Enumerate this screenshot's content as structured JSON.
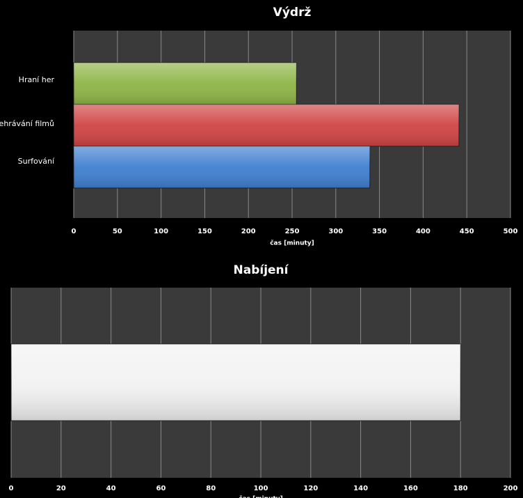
{
  "chart_data": [
    {
      "type": "bar",
      "orientation": "horizontal",
      "title": "Výdrž",
      "categories": [
        "Hraní her",
        "Přehrávání filmů",
        "Surfování"
      ],
      "series": [
        {
          "values": [
            255,
            441,
            339
          ],
          "colors": [
            "#8fb547",
            "#d04444",
            "#3f7fd0"
          ]
        }
      ],
      "x_label": "čas [minuty]",
      "xlim": [
        0,
        500
      ],
      "xticks": [
        0,
        50,
        100,
        150,
        200,
        250,
        300,
        350,
        400,
        450,
        500
      ],
      "grid": true
    },
    {
      "type": "bar",
      "orientation": "horizontal",
      "title": "Nabíjení",
      "categories": [
        null
      ],
      "series": [
        {
          "values": [
            180
          ],
          "colors": [
            "#f2f2f2"
          ]
        }
      ],
      "x_label": "čas [minuty]",
      "xlim": [
        0,
        200
      ],
      "xticks": [
        0,
        20,
        40,
        60,
        80,
        100,
        120,
        140,
        160,
        180,
        200
      ],
      "grid": true
    }
  ]
}
